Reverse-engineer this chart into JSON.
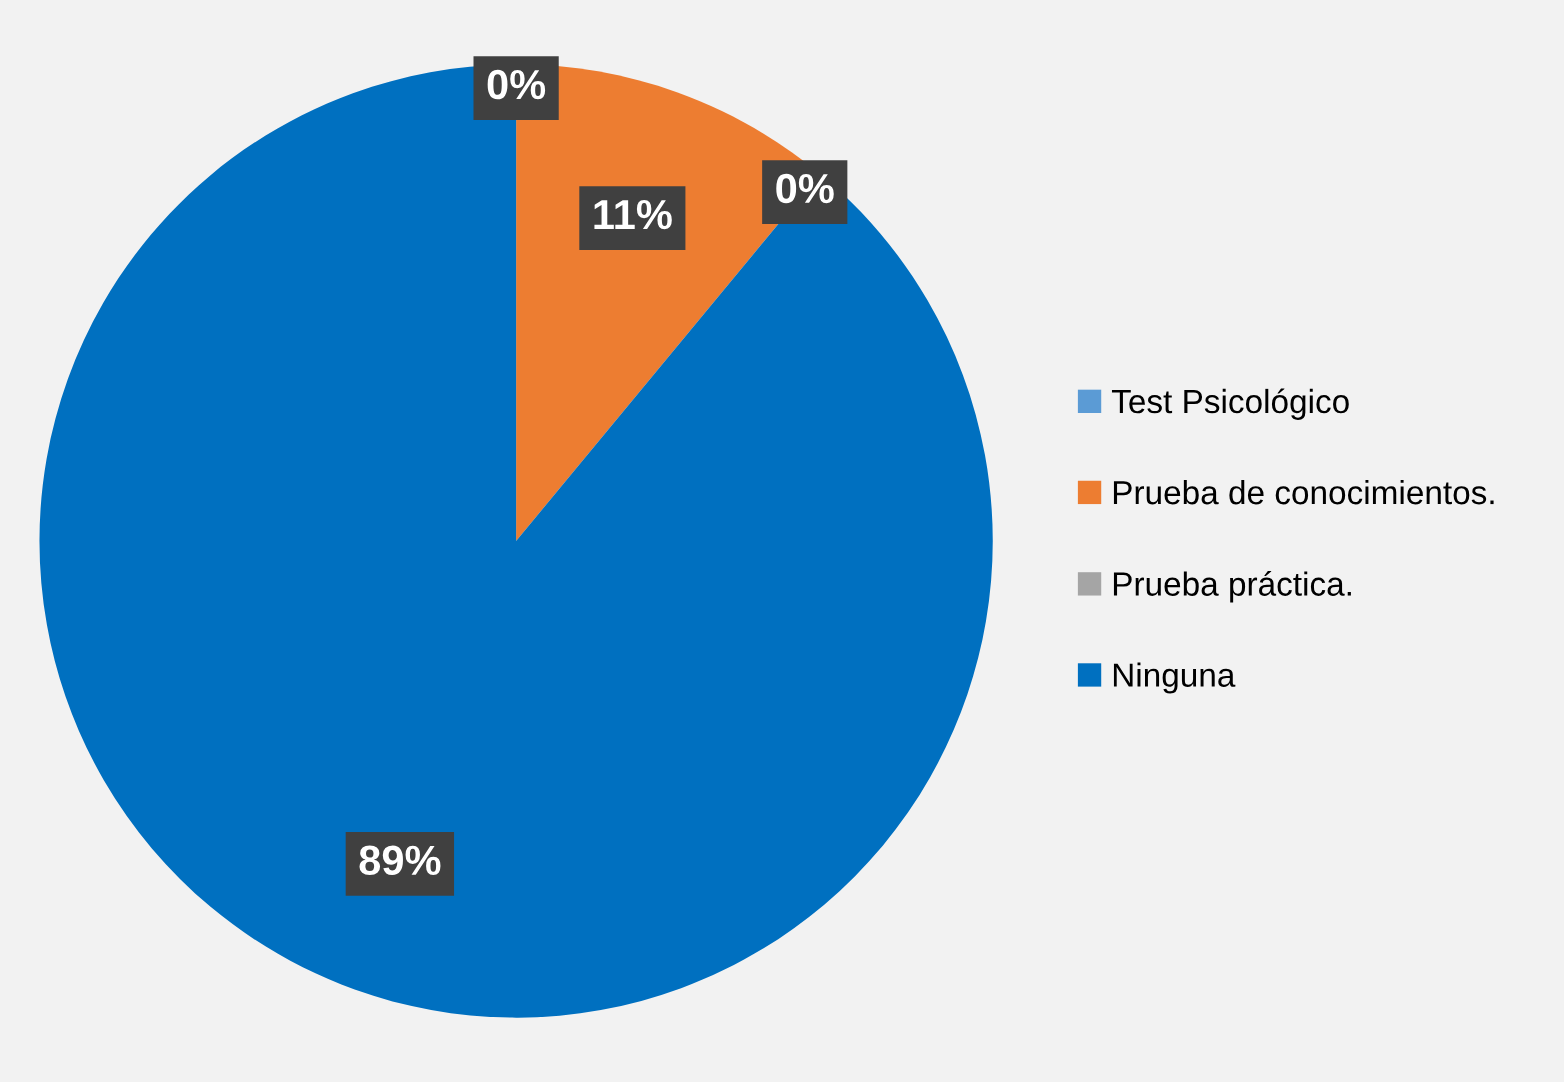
{
  "chart_data": {
    "type": "pie",
    "categories": [
      "Test Psicológico",
      "Prueba de conocimientos.",
      "Prueba práctica.",
      "Ninguna"
    ],
    "values": [
      0,
      11,
      0,
      89
    ],
    "colors": [
      "#5b9bd5",
      "#ed7d31",
      "#a5a5a5",
      "#0070c0"
    ],
    "value_labels": [
      "0%",
      "11%",
      "0%",
      "89%"
    ],
    "legend": "right"
  }
}
